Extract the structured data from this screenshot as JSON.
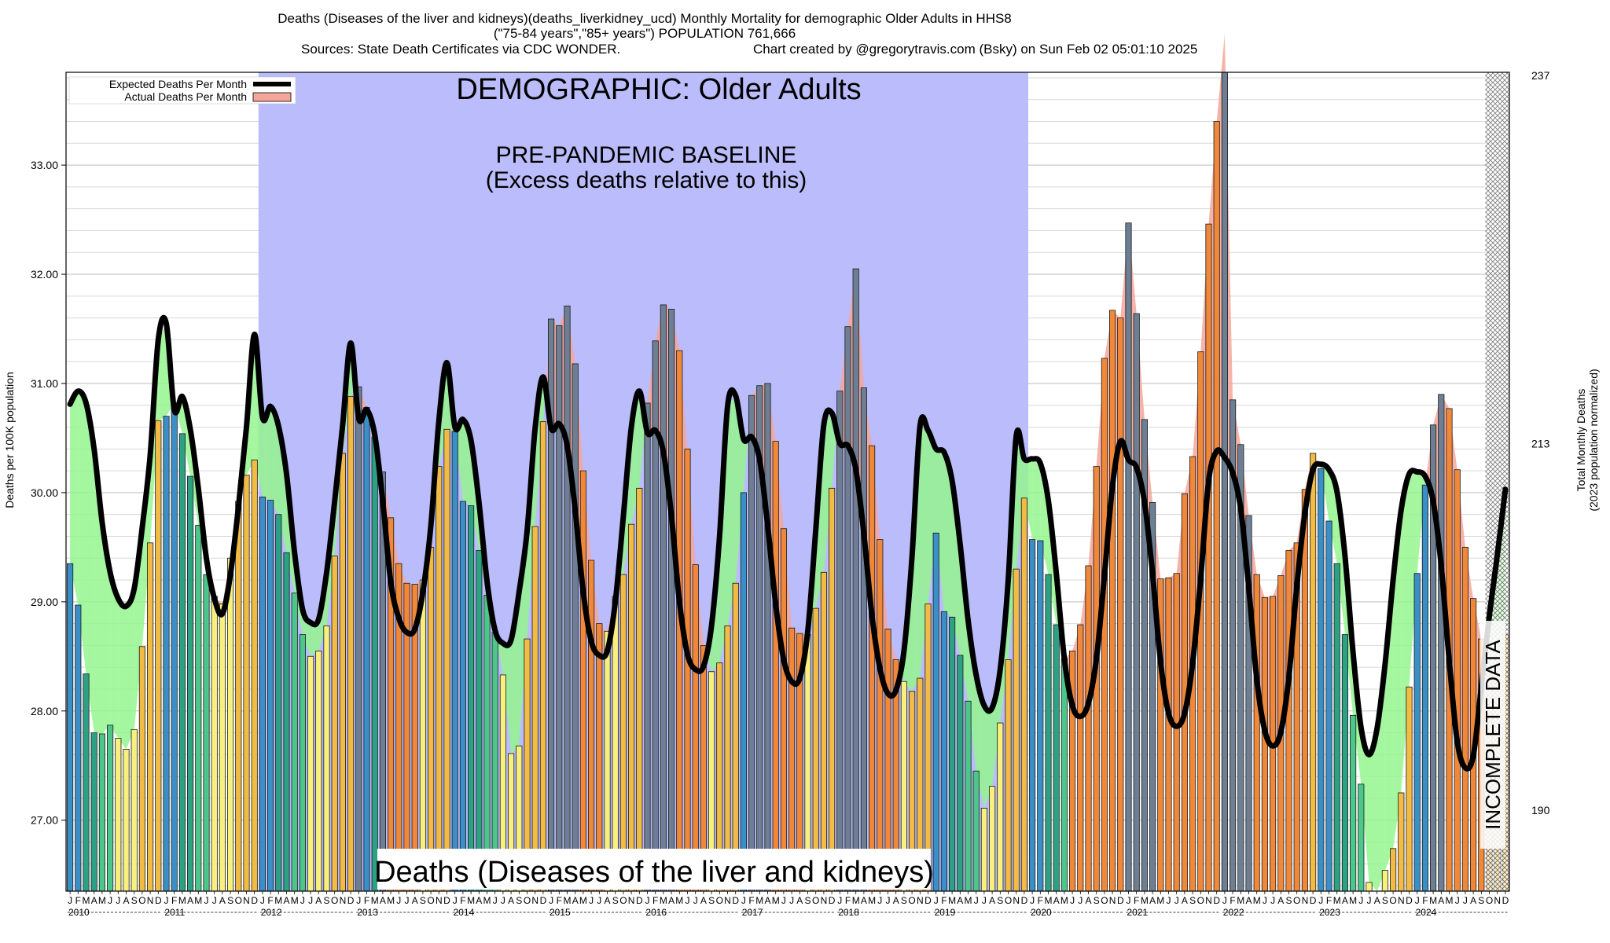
{
  "header": {
    "line1": "Deaths (Diseases of the liver and kidneys)(deaths_liverkidney_ucd) Monthly Mortality for demographic Older Adults in HHS8",
    "line2": "(\"75-84 years\",\"85+ years\") POPULATION 761,666",
    "line3_left": "Sources: State Death Certificates via CDC WONDER.",
    "line3_right": "Chart created by @gregorytravis.com (Bsky) on Sun Feb 02 05:01:10 2025"
  },
  "chart_data": {
    "type": "bar",
    "ylabel": "Deaths per 100K population",
    "ylabel_right": "Total Monthly Deaths",
    "ylabel_right_sub": "(2023 population normalized)",
    "ylim": [
      26.35,
      33.85
    ],
    "yticks": [
      "27.00",
      "28.00",
      "29.00",
      "30.00",
      "31.00",
      "32.00",
      "33.00"
    ],
    "yticks_right": [
      "190",
      "213",
      "237"
    ],
    "legend": {
      "expected": "Expected Deaths Per Month",
      "actual": "Actual Deaths Per Month",
      "position": "top-left"
    },
    "annotations": {
      "demographic": "DEMOGRAPHIC: Older Adults",
      "baseline_line1": "PRE-PANDEMIC BASELINE",
      "baseline_line2": "(Excess deaths relative to this)",
      "bottom_title": "Deaths (Diseases of the liver and kidneys)",
      "incomplete": "INCOMPLETE DATA"
    },
    "baseline_period": [
      "2012-01",
      "2019-12"
    ],
    "incomplete_period": [
      "2024-10",
      "2024-12"
    ],
    "month_letters": [
      "J",
      "F",
      "M",
      "A",
      "M",
      "J",
      "J",
      "A",
      "S",
      "O",
      "N",
      "D"
    ],
    "years": [
      "2010",
      "2011",
      "2012",
      "2013",
      "2014",
      "2015",
      "2016",
      "2017",
      "2018",
      "2019",
      "2020",
      "2021",
      "2022",
      "2023",
      "2024"
    ],
    "actual": [
      29.35,
      28.97,
      28.34,
      27.8,
      27.79,
      27.87,
      27.75,
      27.65,
      27.83,
      28.59,
      29.54,
      30.66,
      30.7,
      30.82,
      30.54,
      30.15,
      29.7,
      29.25,
      29.05,
      28.98,
      29.4,
      29.92,
      30.16,
      30.3,
      29.96,
      29.93,
      29.8,
      29.45,
      29.08,
      28.7,
      28.5,
      28.55,
      28.78,
      29.42,
      30.36,
      30.88,
      30.97,
      30.78,
      30.51,
      30.19,
      29.77,
      29.35,
      29.17,
      29.16,
      29.2,
      29.5,
      30.24,
      30.58,
      30.56,
      29.92,
      29.88,
      29.47,
      29.06,
      28.72,
      28.33,
      27.61,
      27.68,
      28.66,
      29.69,
      30.65,
      31.59,
      31.53,
      31.71,
      31.18,
      30.2,
      29.38,
      28.8,
      28.73,
      29.05,
      29.25,
      29.71,
      30.04,
      30.82,
      31.39,
      31.72,
      31.68,
      31.3,
      30.4,
      29.34,
      28.6,
      28.36,
      28.44,
      28.78,
      29.17,
      30.0,
      30.89,
      30.98,
      31.0,
      30.47,
      29.67,
      28.76,
      28.71,
      28.7,
      28.94,
      29.27,
      30.04,
      30.93,
      31.52,
      32.05,
      30.96,
      30.43,
      29.57,
      28.75,
      28.47,
      28.27,
      28.18,
      28.3,
      28.98,
      29.63,
      28.91,
      28.86,
      28.51,
      28.09,
      27.45,
      27.11,
      27.31,
      27.89,
      28.47,
      29.3,
      29.95,
      29.57,
      29.56,
      29.25,
      28.79,
      28.48,
      28.55,
      28.79,
      29.33,
      30.24,
      31.23,
      31.67,
      31.6,
      32.47,
      31.64,
      30.67,
      29.91,
      29.21,
      29.22,
      29.26,
      29.99,
      30.33,
      31.29,
      32.46,
      33.4,
      34.2,
      30.85,
      30.44,
      29.79,
      29.25,
      29.04,
      29.05,
      29.24,
      29.47,
      29.54,
      30.03,
      30.36,
      30.22,
      29.74,
      29.35,
      28.7,
      27.96,
      27.33,
      26.43,
      26.35,
      26.54,
      26.74,
      27.25,
      28.22,
      29.26,
      30.07,
      30.62,
      30.9,
      30.77,
      30.21,
      29.5,
      29.03,
      28.66,
      28.41,
      28.5,
      28.7
    ],
    "expected": [
      30.81,
      30.93,
      30.82,
      30.4,
      29.73,
      29.27,
      29.03,
      28.96,
      29.12,
      29.68,
      30.35,
      31.4,
      31.55,
      30.76,
      30.88,
      30.58,
      30.04,
      29.4,
      29.03,
      28.89,
      29.25,
      29.87,
      30.6,
      31.45,
      30.69,
      30.79,
      30.61,
      30.17,
      29.45,
      28.93,
      28.81,
      28.84,
      29.27,
      29.92,
      30.62,
      31.37,
      30.68,
      30.76,
      30.53,
      29.92,
      29.18,
      28.85,
      28.72,
      28.75,
      29.09,
      29.7,
      30.66,
      31.19,
      30.6,
      30.67,
      30.48,
      29.91,
      29.19,
      28.74,
      28.62,
      28.65,
      29.09,
      29.65,
      30.59,
      31.06,
      30.59,
      30.63,
      30.43,
      29.84,
      29.09,
      28.64,
      28.51,
      28.55,
      29.0,
      29.78,
      30.6,
      30.93,
      30.55,
      30.57,
      30.37,
      29.79,
      29.0,
      28.52,
      28.38,
      28.41,
      28.78,
      29.6,
      30.79,
      30.89,
      30.49,
      30.51,
      30.3,
      29.7,
      28.98,
      28.47,
      28.27,
      28.3,
      28.73,
      29.66,
      30.62,
      30.73,
      30.45,
      30.43,
      30.21,
      29.62,
      28.88,
      28.39,
      28.16,
      28.19,
      28.55,
      29.41,
      30.61,
      30.57,
      30.4,
      30.37,
      30.11,
      29.53,
      28.83,
      28.33,
      28.05,
      28.03,
      28.38,
      29.2,
      30.52,
      30.31,
      30.31,
      30.27,
      29.93,
      29.26,
      28.48,
      28.05,
      27.95,
      28.07,
      28.48,
      29.24,
      30.06,
      30.47,
      30.3,
      30.23,
      29.91,
      29.26,
      28.45,
      27.98,
      27.86,
      27.98,
      28.44,
      29.21,
      30.11,
      30.38,
      30.32,
      30.18,
      29.85,
      29.13,
      28.29,
      27.82,
      27.68,
      27.81,
      28.31,
      29.15,
      29.81,
      30.21,
      30.26,
      30.21,
      30.01,
      29.42,
      28.54,
      27.85,
      27.6,
      27.84,
      28.43,
      29.2,
      29.84,
      30.17,
      30.19,
      30.15,
      29.92,
      29.33,
      28.46,
      27.72,
      27.48,
      27.59,
      28.22,
      28.87,
      29.43,
      30.03
    ]
  }
}
